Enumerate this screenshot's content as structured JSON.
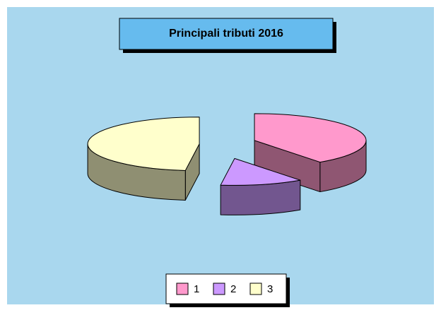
{
  "chart_data": {
    "type": "pie",
    "title": "Principali tributi 2016",
    "categories": [
      "1",
      "2",
      "3"
    ],
    "values": [
      40,
      12,
      48
    ],
    "colors": [
      "#ff99cc",
      "#cc99ff",
      "#ffffcc"
    ],
    "three_d": true,
    "exploded": true,
    "legend": "bottom"
  }
}
